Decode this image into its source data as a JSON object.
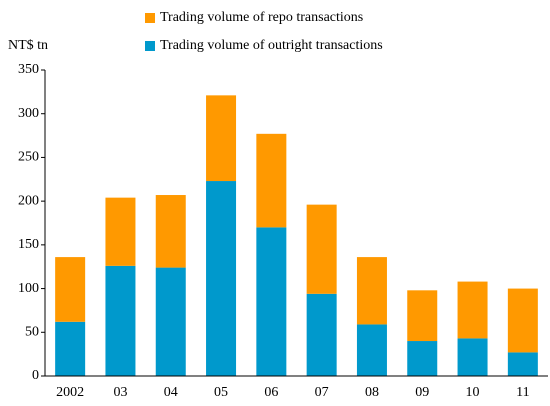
{
  "chart_data": {
    "type": "stacked_bar",
    "y_label": "NT$ tn",
    "categories": [
      "2002",
      "03",
      "04",
      "05",
      "06",
      "07",
      "08",
      "09",
      "10",
      "11"
    ],
    "series": [
      {
        "name": "Trading volume of outright transactions",
        "color": "#0099cc",
        "values": [
          62,
          126,
          124,
          223,
          170,
          94,
          59,
          40,
          43,
          27
        ]
      },
      {
        "name": "Trading volume of repo transactions",
        "color": "#ff9900",
        "values": [
          74,
          78,
          83,
          98,
          107,
          102,
          77,
          58,
          65,
          73
        ]
      }
    ],
    "ylim": [
      0,
      350
    ],
    "yticks": [
      0,
      50,
      100,
      150,
      200,
      250,
      300,
      350
    ],
    "grid": false
  }
}
